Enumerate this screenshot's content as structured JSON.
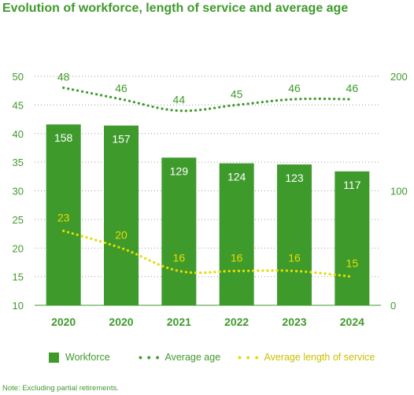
{
  "title": "Evolution of workforce, length of service and average age",
  "note": "Note: Excluding partial retirements.",
  "colors": {
    "bar": "#3f9a2c",
    "age": "#3f9a2c",
    "service": "#e3dd00",
    "grid": "#9a9a9a"
  },
  "legend": {
    "workforce": "Workforce",
    "age": "Average age",
    "service": "Average length of service",
    "dots": "• • •"
  },
  "chart_data": {
    "type": "bar",
    "title": "Evolution of workforce, length of service and average age",
    "categories": [
      "2020",
      "2020",
      "2021",
      "2022",
      "2023",
      "2024"
    ],
    "series": [
      {
        "name": "Workforce",
        "type": "bar",
        "axis": "right",
        "values": [
          158,
          157,
          129,
          124,
          123,
          117
        ]
      },
      {
        "name": "Average age",
        "type": "line",
        "style": "dotted",
        "axis": "left",
        "values": [
          48,
          46,
          44,
          45,
          46,
          46
        ]
      },
      {
        "name": "Average length of service",
        "type": "line",
        "style": "dotted",
        "axis": "left",
        "values": [
          23,
          20,
          16,
          16,
          16,
          15
        ]
      }
    ],
    "yleft": {
      "lim": [
        10,
        50
      ],
      "ticks": [
        "10",
        "15",
        "20",
        "25",
        "30",
        "35",
        "40",
        "45",
        "50"
      ]
    },
    "yright": {
      "lim": [
        0,
        200
      ],
      "ticks": [
        "0",
        "100",
        "200"
      ]
    },
    "grid": "dotted horizontal",
    "legend_position": "bottom"
  }
}
